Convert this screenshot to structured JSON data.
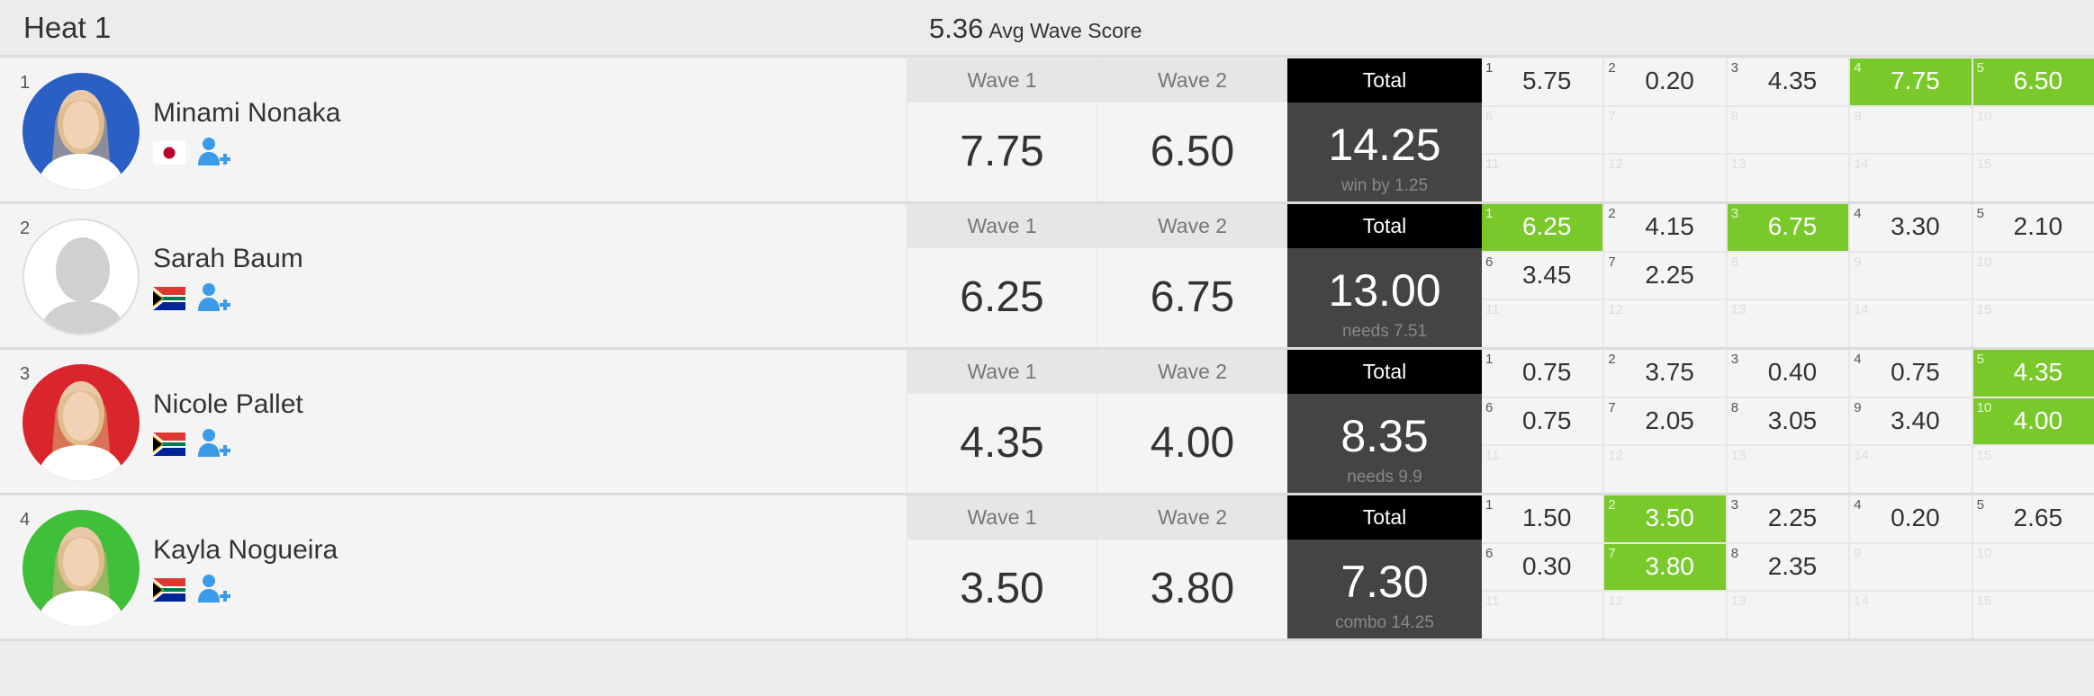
{
  "header": {
    "title": "Heat 1",
    "avg_value": "5.36",
    "avg_label": "Avg Wave Score"
  },
  "labels": {
    "wave1": "Wave 1",
    "wave2": "Wave 2",
    "total": "Total"
  },
  "colors": {
    "best": "#7ac92b",
    "total_head": "#000000",
    "total_body": "#444444"
  },
  "athletes": [
    {
      "rank": "1",
      "name": "Minami Nonaka",
      "country": "Japan",
      "avatar_color": "#2a5fc4",
      "wave1": "7.75",
      "wave2": "6.50",
      "total": "14.25",
      "note": "win by 1.25",
      "waves": [
        [
          "5.75",
          0
        ],
        [
          "0.20",
          0
        ],
        [
          "4.35",
          0
        ],
        [
          "7.75",
          1
        ],
        [
          "6.50",
          1
        ]
      ]
    },
    {
      "rank": "2",
      "name": "Sarah Baum",
      "country": "South Africa",
      "avatar_color": "#ffffff",
      "wave1": "6.25",
      "wave2": "6.75",
      "total": "13.00",
      "note": "needs 7.51",
      "waves": [
        [
          "6.25",
          1
        ],
        [
          "4.15",
          0
        ],
        [
          "6.75",
          1
        ],
        [
          "3.30",
          0
        ],
        [
          "2.10",
          0
        ],
        [
          "3.45",
          0
        ],
        [
          "2.25",
          0
        ]
      ]
    },
    {
      "rank": "3",
      "name": "Nicole Pallet",
      "country": "South Africa",
      "avatar_color": "#d9262c",
      "wave1": "4.35",
      "wave2": "4.00",
      "total": "8.35",
      "note": "needs 9.9",
      "waves": [
        [
          "0.75",
          0
        ],
        [
          "3.75",
          0
        ],
        [
          "0.40",
          0
        ],
        [
          "0.75",
          0
        ],
        [
          "4.35",
          1
        ],
        [
          "0.75",
          0
        ],
        [
          "2.05",
          0
        ],
        [
          "3.05",
          0
        ],
        [
          "3.40",
          0
        ],
        [
          "4.00",
          1
        ]
      ]
    },
    {
      "rank": "4",
      "name": "Kayla Nogueira",
      "country": "South Africa",
      "avatar_color": "#3fbf3a",
      "wave1": "3.50",
      "wave2": "3.80",
      "total": "7.30",
      "note": "combo 14.25",
      "waves": [
        [
          "1.50",
          0
        ],
        [
          "3.50",
          1
        ],
        [
          "2.25",
          0
        ],
        [
          "0.20",
          0
        ],
        [
          "2.65",
          0
        ],
        [
          "0.30",
          0
        ],
        [
          "3.80",
          1
        ],
        [
          "2.35",
          0
        ]
      ]
    }
  ]
}
